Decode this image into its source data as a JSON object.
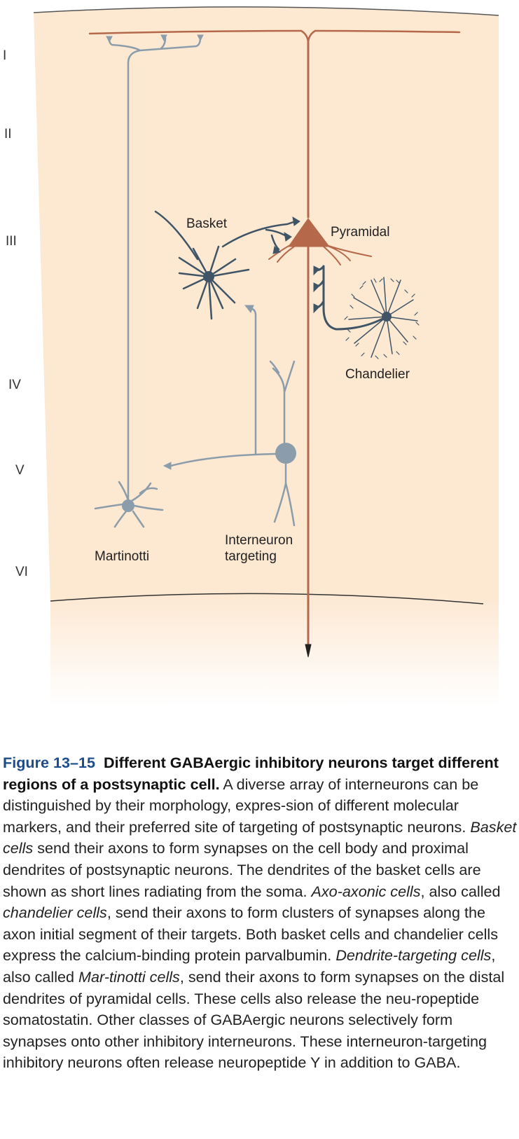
{
  "diagram": {
    "layers": [
      "I",
      "II",
      "III",
      "IV",
      "V",
      "VI"
    ],
    "cells": {
      "basket": "Basket",
      "pyramidal": "Pyramidal",
      "chandelier": "Chandelier",
      "martinotti": "Martinotti",
      "interneuron_line1": "Interneuron",
      "interneuron_line2": "targeting"
    },
    "colors": {
      "background": "#fde8d2",
      "pyramidal": "#b5694a",
      "inhibitory_dark": "#3f5566",
      "inhibitory_light": "#8b9dab"
    }
  },
  "caption": {
    "figure_number": "Figure 13–15",
    "title": "Different GABAergic inhibitory neurons target different regions of a postsynaptic cell.",
    "t1": " A diverse array of interneurons can be distinguished by their morphology, expres-sion of different molecular markers, and their preferred site of targeting of postsynaptic neurons. ",
    "e1": "Basket cells",
    "t2": " send their axons to form synapses on the cell body and proximal dendrites of postsynaptic neurons. The dendrites of the basket cells are shown as  short lines radiating from the soma. ",
    "e2": "Axo-axonic cells",
    "t3": ", also called ",
    "e3": "chandelier cells",
    "t4": ", send their axons to form clusters of synapses along the axon initial segment of their targets. Both basket cells and chandelier cells express the calcium-binding protein parvalbumin. ",
    "e4": "Dendrite-targeting cells",
    "t5": ", also called ",
    "e5": "Mar-tinotti cells",
    "t6": ", send their axons to form synapses on the distal dendrites of pyramidal cells. These cells also release the neu-ropeptide somatostatin. Other classes of GABAergic neurons selectively form synapses onto other inhibitory interneurons. These interneuron-targeting inhibitory neurons often release neuropeptide Y in addition to GABA."
  }
}
